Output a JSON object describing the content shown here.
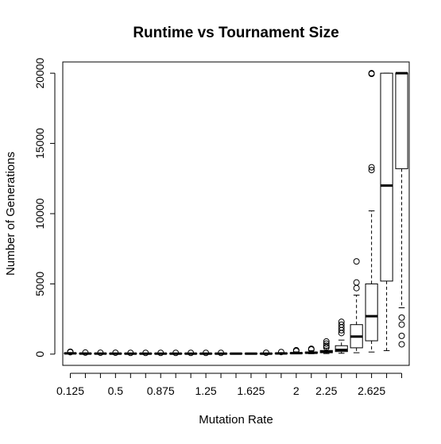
{
  "chart_data": {
    "type": "box",
    "title": "Runtime vs Tournament Size",
    "xlabel": "Mutation Rate",
    "ylabel": "Number of Generations",
    "ylim": [
      -800,
      20800
    ],
    "y_ticks": [
      0,
      5000,
      10000,
      15000,
      20000
    ],
    "x_tick_labels": [
      "0.125",
      "0.5",
      "0.875",
      "1.25",
      "1.625",
      "2",
      "2.25",
      "2.625"
    ],
    "x_tick_label_positions": [
      1,
      4,
      7,
      10,
      13,
      16,
      18,
      21
    ],
    "grid": false,
    "boxes": [
      {
        "x": 1,
        "whisker_low": 20,
        "q1": 40,
        "median": 55,
        "q3": 75,
        "whisker_high": 110,
        "outliers": [
          140,
          170
        ]
      },
      {
        "x": 2,
        "whisker_low": 15,
        "q1": 30,
        "median": 40,
        "q3": 55,
        "whisker_high": 80,
        "outliers": [
          110
        ]
      },
      {
        "x": 3,
        "whisker_low": 15,
        "q1": 28,
        "median": 38,
        "q3": 50,
        "whisker_high": 75,
        "outliers": [
          100
        ]
      },
      {
        "x": 4,
        "whisker_low": 15,
        "q1": 28,
        "median": 36,
        "q3": 50,
        "whisker_high": 70,
        "outliers": [
          100
        ]
      },
      {
        "x": 5,
        "whisker_low": 15,
        "q1": 26,
        "median": 35,
        "q3": 48,
        "whisker_high": 65,
        "outliers": [
          90
        ]
      },
      {
        "x": 6,
        "whisker_low": 15,
        "q1": 26,
        "median": 35,
        "q3": 48,
        "whisker_high": 65,
        "outliers": [
          90
        ]
      },
      {
        "x": 7,
        "whisker_low": 15,
        "q1": 26,
        "median": 35,
        "q3": 48,
        "whisker_high": 65,
        "outliers": [
          90
        ]
      },
      {
        "x": 8,
        "whisker_low": 15,
        "q1": 26,
        "median": 35,
        "q3": 48,
        "whisker_high": 65,
        "outliers": [
          90
        ]
      },
      {
        "x": 9,
        "whisker_low": 15,
        "q1": 26,
        "median": 35,
        "q3": 48,
        "whisker_high": 65,
        "outliers": [
          90
        ]
      },
      {
        "x": 10,
        "whisker_low": 15,
        "q1": 26,
        "median": 35,
        "q3": 48,
        "whisker_high": 65,
        "outliers": [
          90
        ]
      },
      {
        "x": 11,
        "whisker_low": 15,
        "q1": 26,
        "median": 35,
        "q3": 48,
        "whisker_high": 65,
        "outliers": [
          90
        ]
      },
      {
        "x": 12,
        "whisker_low": 15,
        "q1": 26,
        "median": 35,
        "q3": 48,
        "whisker_high": 65,
        "outliers": []
      },
      {
        "x": 13,
        "whisker_low": 15,
        "q1": 26,
        "median": 35,
        "q3": 48,
        "whisker_high": 65,
        "outliers": []
      },
      {
        "x": 14,
        "whisker_low": 15,
        "q1": 26,
        "median": 35,
        "q3": 50,
        "whisker_high": 70,
        "outliers": [
          100
        ]
      },
      {
        "x": 15,
        "whisker_low": 20,
        "q1": 35,
        "median": 50,
        "q3": 70,
        "whisker_high": 110,
        "outliers": [
          150
        ]
      },
      {
        "x": 16,
        "whisker_low": 25,
        "q1": 45,
        "median": 70,
        "q3": 100,
        "whisker_high": 160,
        "outliers": [
          220,
          280
        ]
      },
      {
        "x": 17,
        "whisker_low": 30,
        "q1": 60,
        "median": 100,
        "q3": 150,
        "whisker_high": 250,
        "outliers": [
          330,
          380
        ]
      },
      {
        "x": 18,
        "whisker_low": 40,
        "q1": 100,
        "median": 160,
        "q3": 260,
        "whisker_high": 420,
        "outliers": [
          480,
          600,
          750,
          900
        ]
      },
      {
        "x": 19,
        "whisker_low": 60,
        "q1": 180,
        "median": 300,
        "q3": 600,
        "whisker_high": 1000,
        "outliers": [
          1500,
          1700,
          1900,
          2100,
          2300
        ]
      },
      {
        "x": 20,
        "whisker_low": 100,
        "q1": 450,
        "median": 1250,
        "q3": 2100,
        "whisker_high": 4200,
        "outliers": [
          4700,
          5100,
          6600
        ]
      },
      {
        "x": 21,
        "whisker_low": 150,
        "q1": 950,
        "median": 2700,
        "q3": 5000,
        "whisker_high": 10200,
        "outliers": [
          13100,
          13300,
          19950,
          20000
        ]
      },
      {
        "x": 22,
        "whisker_low": 250,
        "q1": 5200,
        "median": 12000,
        "q3": 20000,
        "whisker_high": 20000,
        "outliers": []
      },
      {
        "x": 23,
        "whisker_low": 3300,
        "q1": 13200,
        "median": 20000,
        "q3": 20000,
        "whisker_high": 20000,
        "outliers": [
          700,
          1300,
          2100,
          2600
        ]
      }
    ]
  }
}
